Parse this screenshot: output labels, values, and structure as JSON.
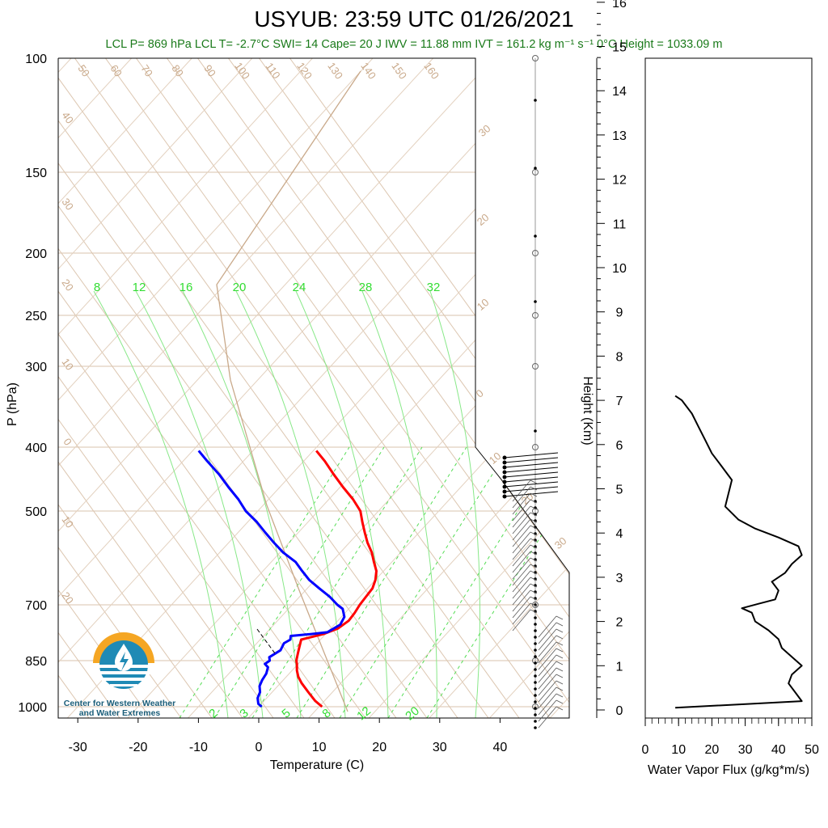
{
  "title": "USYUB: 23:59 UTC 01/26/2021",
  "subtitle": "LCL P= 869 hPa  LCL T= -2.7°C  SWI= 14  Cape= 20 J  IWV = 11.88 mm  IVT = 161.2 kg m⁻¹ s⁻¹  0°C Height = 1033.09 m",
  "logo_text_1": "Center for Western Weather",
  "logo_text_2": "and Water Extremes",
  "colors": {
    "temperature": "#ff0000",
    "dewpoint": "#0000ff",
    "isotherm": "#d9c3ad",
    "mixing": "#33dd33",
    "flux": "#000000",
    "parcel": "#c9a98a"
  },
  "chart_data": [
    {
      "type": "skew-t",
      "xlabel": "Temperature (C)",
      "ylabel": "P (hPa)",
      "xlim": [
        -34,
        52
      ],
      "x_ticks": [
        "-30",
        "-20",
        "-10",
        "0",
        "10",
        "20",
        "30",
        "40"
      ],
      "pressure_ticks": [
        "100",
        "150",
        "200",
        "250",
        "300",
        "400",
        "500",
        "700",
        "850",
        "1000"
      ],
      "height_label": "Height (Km)",
      "height_ticks": [
        "0",
        "1",
        "2",
        "3",
        "4",
        "5",
        "6",
        "7",
        "8",
        "9",
        "10",
        "11",
        "12",
        "13",
        "14",
        "15",
        "16"
      ],
      "isotherm_labels": [
        "50",
        "60",
        "70",
        "80",
        "90",
        "100",
        "110",
        "120",
        "130",
        "140",
        "150",
        "160",
        "40",
        "30",
        "20",
        "10",
        "0",
        "10",
        "20"
      ],
      "adiabat_labels": [
        "30",
        "20",
        "10",
        "0",
        "10",
        "20",
        "30"
      ],
      "mixing_ratio_top_labels": [
        "8",
        "12",
        "16",
        "20",
        "24",
        "28",
        "32"
      ],
      "mixing_ratio_bottom_labels": [
        "2",
        "3",
        "5",
        "8",
        "12",
        "20"
      ],
      "temperature_profile": {
        "pressure": [
          1000,
          980,
          950,
          920,
          900,
          880,
          860,
          850,
          830,
          810,
          790,
          775,
          760,
          740,
          720,
          700,
          680,
          660,
          640,
          620,
          600,
          580,
          560,
          540,
          520,
          500,
          480,
          460,
          440,
          420,
          405
        ],
        "temp": [
          10.5,
          8.5,
          6.0,
          3.5,
          2.0,
          0.8,
          -0.2,
          -0.8,
          -1.6,
          -2.4,
          -3.2,
          -0.4,
          1.2,
          1.8,
          1.6,
          1.2,
          1.0,
          0.8,
          0.0,
          -1.2,
          -3.0,
          -4.8,
          -7.0,
          -9.0,
          -11.0,
          -13.0,
          -16.0,
          -19.5,
          -23.0,
          -26.5,
          -29.5
        ]
      },
      "dewpoint_profile": {
        "pressure": [
          1000,
          990,
          970,
          950,
          930,
          910,
          890,
          870,
          860,
          850,
          840,
          820,
          800,
          790,
          780,
          775,
          770,
          750,
          730,
          710,
          700,
          680,
          660,
          640,
          620,
          600,
          580,
          560,
          540,
          520,
          500,
          480,
          460,
          440,
          420,
          405
        ],
        "dewpoint": [
          0.5,
          -0.5,
          -1.5,
          -2.0,
          -3.0,
          -3.5,
          -3.8,
          -4.5,
          -5.5,
          -5.2,
          -5.8,
          -5.0,
          -5.5,
          -5.0,
          -5.5,
          -2.5,
          0.0,
          1.0,
          0.5,
          -1.0,
          -2.5,
          -5.0,
          -8.0,
          -11.0,
          -13.5,
          -16.0,
          -19.5,
          -22.5,
          -25.5,
          -28.5,
          -32.0,
          -35.0,
          -38.5,
          -42.0,
          -46.0,
          -49.0
        ]
      }
    },
    {
      "type": "line",
      "xlabel": "Water Vapor Flux (g/kg*m/s)",
      "ylabel": "Height (Km)",
      "xlim": [
        0,
        50
      ],
      "ylim": [
        0,
        16.5
      ],
      "x_ticks": [
        "0",
        "10",
        "20",
        "30",
        "40",
        "50"
      ],
      "series": [
        {
          "height_km": [
            0.05,
            0.2,
            0.4,
            0.6,
            0.8,
            1.0,
            1.2,
            1.4,
            1.6,
            1.8,
            2.0,
            2.2,
            2.3,
            2.4,
            2.5,
            2.7,
            2.9,
            3.1,
            3.3,
            3.5,
            3.7,
            3.9,
            4.1,
            4.3,
            4.6,
            4.9,
            5.2,
            5.5,
            5.8,
            6.1,
            6.4,
            6.7,
            7.0,
            7.1
          ],
          "flux": [
            9,
            47,
            45,
            43,
            44,
            47,
            44,
            41,
            40,
            37,
            33,
            32,
            29,
            34,
            39,
            40,
            38,
            42,
            44,
            47,
            46,
            40,
            33,
            28,
            24,
            25,
            26,
            23,
            20,
            18,
            16,
            14,
            11,
            9
          ]
        }
      ]
    }
  ]
}
